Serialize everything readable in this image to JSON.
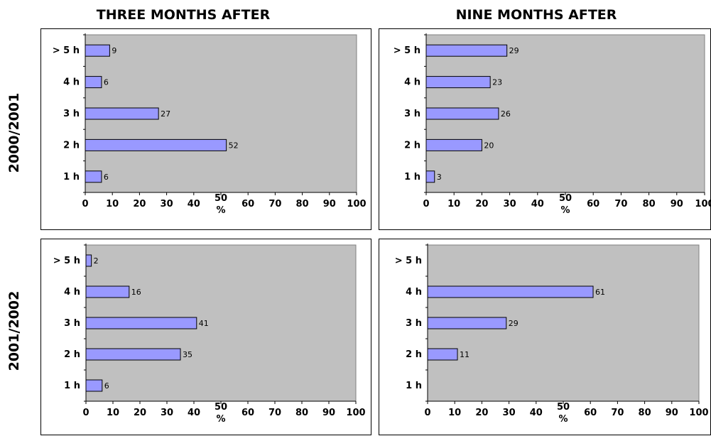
{
  "column_titles": [
    "THREE MONTHS AFTER",
    "NINE MONTHS AFTER"
  ],
  "row_titles": [
    "2000/2001",
    "2001/2002"
  ],
  "colors": {
    "plot_bg": "#c0c0c0",
    "bar_fill": "#9999ff",
    "bar_stroke": "#000000"
  },
  "chart_data": [
    {
      "type": "bar",
      "orientation": "horizontal",
      "column": "THREE MONTHS AFTER",
      "row": "2000/2001",
      "categories": [
        "> 5 h",
        "4 h",
        "3 h",
        "2 h",
        "1 h"
      ],
      "values": [
        9,
        6,
        27,
        52,
        6
      ],
      "xlabel": "%",
      "xlim": [
        0,
        100
      ],
      "xticks": [
        0,
        10,
        20,
        30,
        40,
        50,
        60,
        70,
        80,
        90,
        100
      ],
      "grid": false
    },
    {
      "type": "bar",
      "orientation": "horizontal",
      "column": "NINE MONTHS AFTER",
      "row": "2000/2001",
      "categories": [
        "> 5 h",
        "4 h",
        "3 h",
        "2 h",
        "1 h"
      ],
      "values": [
        29,
        23,
        26,
        20,
        3
      ],
      "xlabel": "%",
      "xlim": [
        0,
        100
      ],
      "xticks": [
        0,
        10,
        20,
        30,
        40,
        50,
        60,
        70,
        80,
        90,
        100
      ],
      "grid": false
    },
    {
      "type": "bar",
      "orientation": "horizontal",
      "column": "THREE MONTHS AFTER",
      "row": "2001/2002",
      "categories": [
        "> 5 h",
        "4 h",
        "3 h",
        "2 h",
        "1 h"
      ],
      "values": [
        2,
        16,
        41,
        35,
        6
      ],
      "xlabel": "%",
      "xlim": [
        0,
        100
      ],
      "xticks": [
        0,
        10,
        20,
        30,
        40,
        50,
        60,
        70,
        80,
        90,
        100
      ],
      "grid": false
    },
    {
      "type": "bar",
      "orientation": "horizontal",
      "column": "NINE MONTHS AFTER",
      "row": "2001/2002",
      "categories": [
        "> 5 h",
        "4 h",
        "3 h",
        "2 h",
        "1 h"
      ],
      "values": [
        null,
        61,
        29,
        11,
        null
      ],
      "xlabel": "%",
      "xlim": [
        0,
        100
      ],
      "xticks": [
        0,
        10,
        20,
        30,
        40,
        50,
        60,
        70,
        80,
        90,
        100
      ],
      "grid": false
    }
  ]
}
